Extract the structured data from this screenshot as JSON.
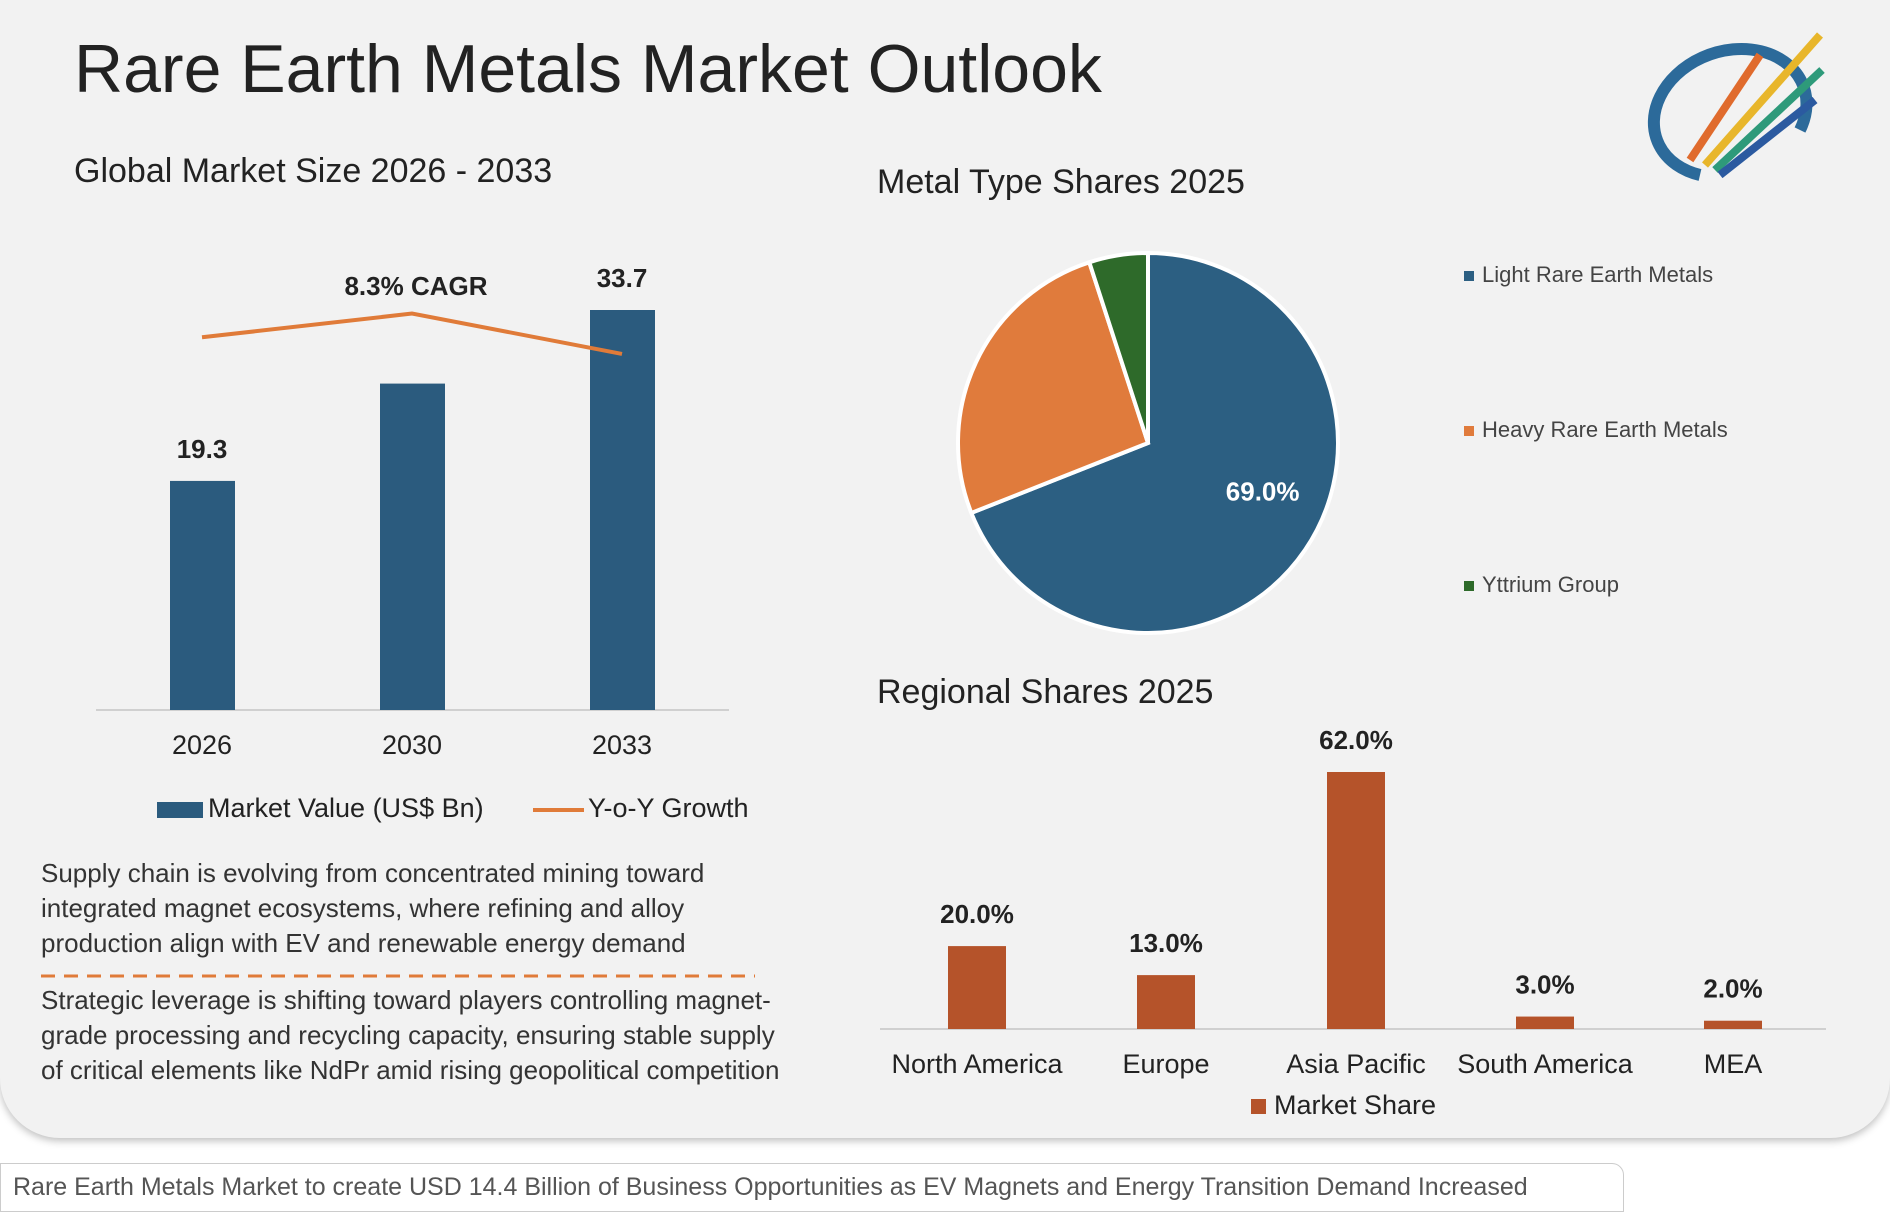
{
  "title": "Rare Earth Metals Market Outlook",
  "notes": [
    "Supply chain is evolving from concentrated mining toward integrated magnet ecosystems, where refining and alloy production align with EV and renewable energy demand",
    "Strategic leverage is shifting toward players controlling magnet-grade processing and recycling capacity, ensuring stable supply of critical elements like NdPr amid rising geopolitical competition"
  ],
  "caption": "Rare Earth Metals Market to create USD 14.4 Billion of Business Opportunities as EV Magnets and Energy Transition Demand Increased",
  "chart_data": [
    {
      "type": "bar",
      "title": "Global Market Size 2026 - 2033",
      "categories": [
        "2026",
        "2030",
        "2033"
      ],
      "annotation": "8.3% CAGR",
      "series": [
        {
          "name": "Market Value (US$ Bn)",
          "color": "#2b5b7e",
          "values": [
            19.3,
            27.5,
            33.7
          ],
          "value_labels": [
            "19.3",
            null,
            "33.7"
          ]
        },
        {
          "name": "Y-o-Y Growth",
          "type": "line",
          "color": "#e07b39",
          "values": [
            31.4,
            33.4,
            30.0
          ]
        }
      ]
    },
    {
      "type": "pie",
      "title": "Metal Type Shares 2025",
      "categories": [
        "Light Rare Earth Metals",
        "Heavy Rare Earth Metals",
        "Yttrium Group"
      ],
      "values": [
        69.0,
        26.0,
        5.0
      ],
      "value_labels": [
        "69.0%",
        null,
        null
      ],
      "colors": [
        "#2c5f82",
        "#e07b3c",
        "#2e6a2a"
      ]
    },
    {
      "type": "bar",
      "title": "Regional Shares 2025",
      "categories": [
        "North America",
        "Europe",
        "Asia Pacific",
        "South America",
        "MEA"
      ],
      "series": [
        {
          "name": "Market Share",
          "color": "#b5532a",
          "values": [
            20.0,
            13.0,
            62.0,
            3.0,
            2.0
          ],
          "value_labels": [
            "20.0%",
            "13.0%",
            "62.0%",
            "3.0%",
            "2.0%"
          ]
        }
      ]
    }
  ]
}
